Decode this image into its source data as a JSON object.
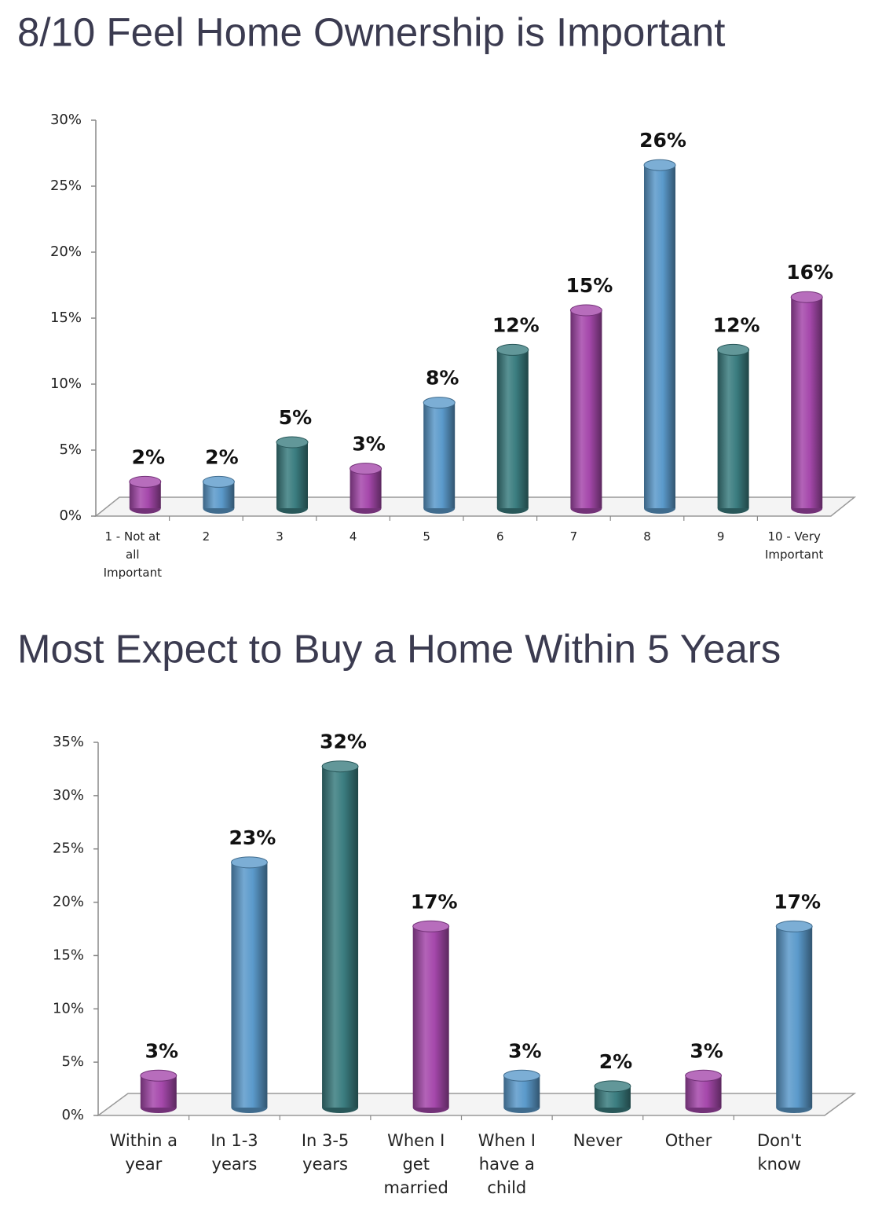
{
  "chart_data": [
    {
      "type": "bar",
      "title": "8/10 Feel Home Ownership is Important",
      "categories": [
        "1 - Not at all Important",
        "2",
        "3",
        "4",
        "5",
        "6",
        "7",
        "8",
        "9",
        "10 - Very Important"
      ],
      "values": [
        2,
        2,
        5,
        3,
        8,
        12,
        15,
        26,
        12,
        16
      ],
      "value_labels": [
        "2%",
        "2%",
        "5%",
        "3%",
        "8%",
        "12%",
        "15%",
        "26%",
        "12%",
        "16%"
      ],
      "colors": [
        "#a548ab",
        "#5b9acb",
        "#3b7d80",
        "#a548ab",
        "#5b9acb",
        "#3b7d80",
        "#a548ab",
        "#5b9acb",
        "#3b7d80",
        "#a548ab"
      ],
      "ylim": [
        0,
        30
      ],
      "yticks": [
        {
          "value": 0,
          "label": "0%"
        },
        {
          "value": 5,
          "label": "5%"
        },
        {
          "value": 10,
          "label": "10%"
        },
        {
          "value": 15,
          "label": "15%"
        },
        {
          "value": 20,
          "label": "20%"
        },
        {
          "value": 25,
          "label": "25%"
        },
        {
          "value": 30,
          "label": "30%"
        }
      ]
    },
    {
      "type": "bar",
      "title": "Most Expect to Buy a Home Within 5 Years",
      "categories": [
        "Within a year",
        "In 1-3 years",
        "In 3-5 years",
        "When I get married",
        "When I have a child",
        "Never",
        "Other",
        "Don't know"
      ],
      "values": [
        3,
        23,
        32,
        17,
        3,
        2,
        3,
        17
      ],
      "value_labels": [
        "3%",
        "23%",
        "32%",
        "17%",
        "3%",
        "2%",
        "3%",
        "17%"
      ],
      "colors": [
        "#a548ab",
        "#5b9acb",
        "#3b7d80",
        "#a548ab",
        "#5b9acb",
        "#3b7d80",
        "#a548ab",
        "#5b9acb"
      ],
      "ylim": [
        0,
        35
      ],
      "yticks": [
        {
          "value": 0,
          "label": "0%"
        },
        {
          "value": 5,
          "label": "5%"
        },
        {
          "value": 10,
          "label": "10%"
        },
        {
          "value": 15,
          "label": "15%"
        },
        {
          "value": 20,
          "label": "20%"
        },
        {
          "value": 25,
          "label": "25%"
        },
        {
          "value": 30,
          "label": "30%"
        },
        {
          "value": 35,
          "label": "35%"
        }
      ]
    }
  ]
}
